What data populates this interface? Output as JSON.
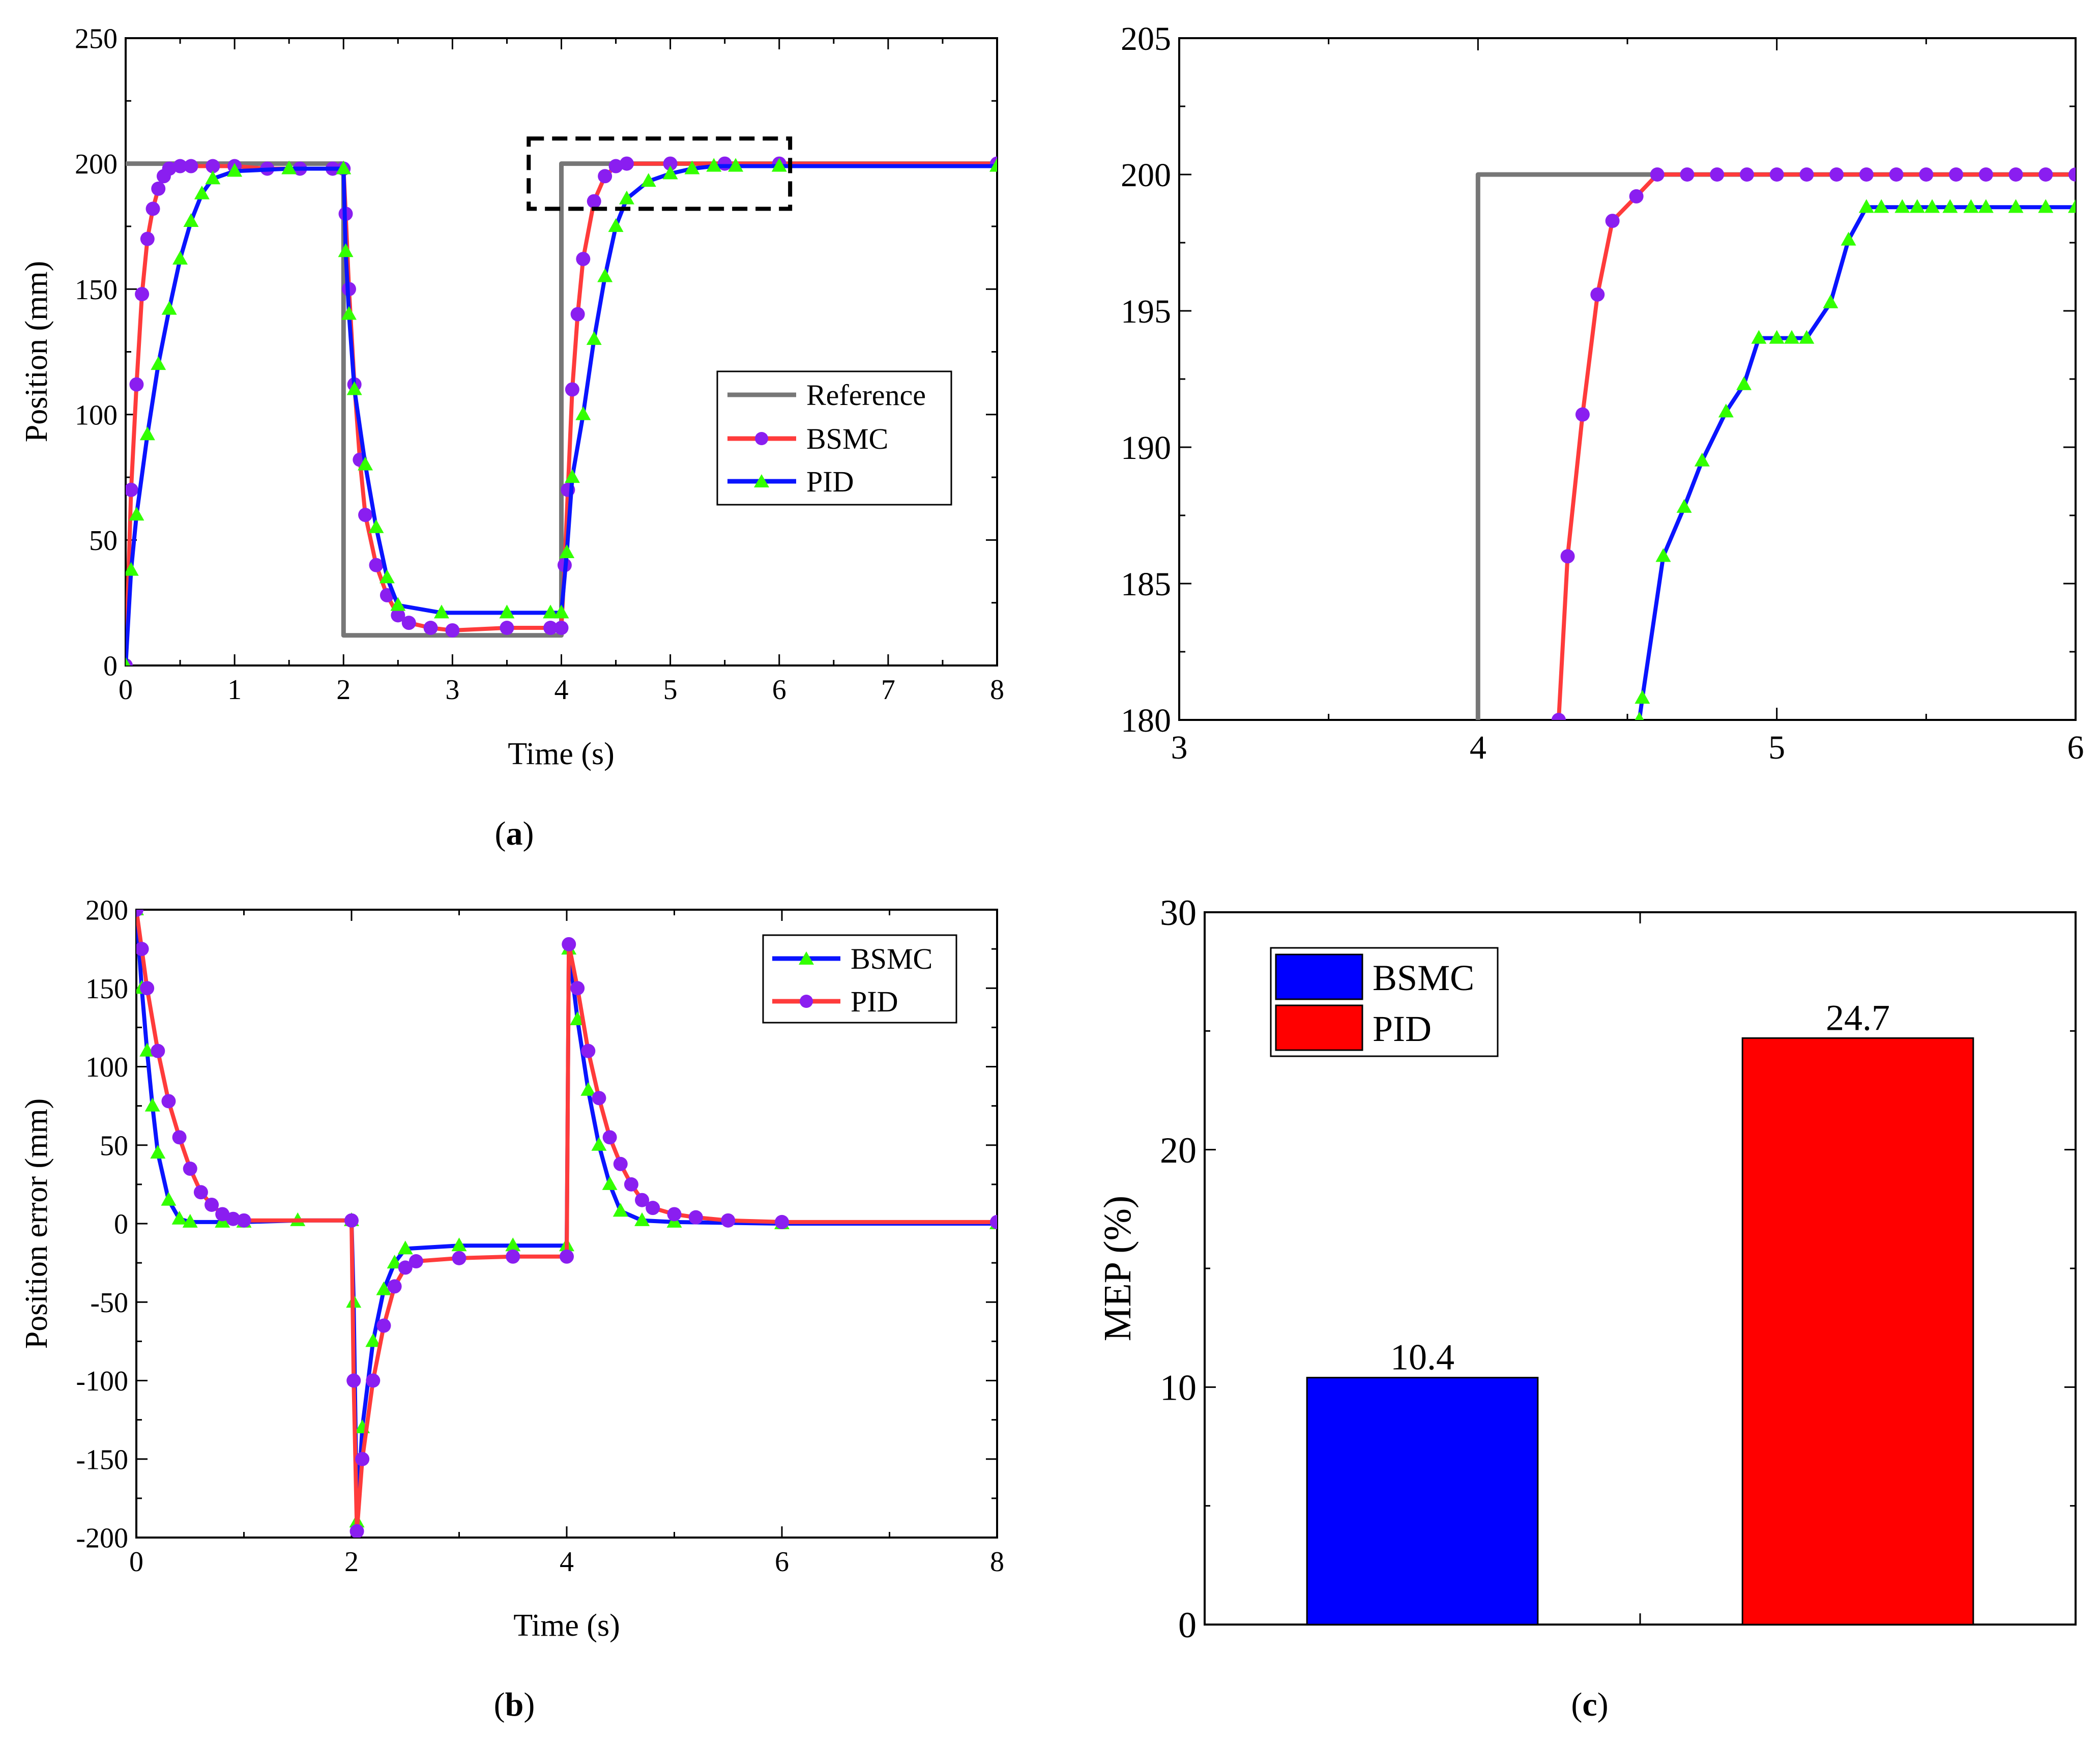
{
  "panels": {
    "a": {
      "label": "a"
    },
    "b": {
      "label": "b"
    },
    "c": {
      "label": "c"
    }
  },
  "colors": {
    "reference": "#777777",
    "bsmc_line": "#ff3b3b",
    "bsmc_marker": "#8a1ef0",
    "pid_line": "#0a14ff",
    "pid_marker": "#33ff00",
    "bar_bsmc": "#0000ff",
    "bar_pid": "#ff0000"
  },
  "chart_data": [
    {
      "id": "a",
      "type": "line",
      "title": "",
      "xlabel": "Time (s)",
      "ylabel": "Position (mm)",
      "xlim": [
        0,
        8
      ],
      "ylim": [
        0,
        250
      ],
      "xticks": [
        0,
        1,
        2,
        3,
        4,
        5,
        6,
        7,
        8
      ],
      "yticks": [
        0,
        50,
        100,
        150,
        200,
        250
      ],
      "legend_position": "center-right",
      "zoom_box": {
        "x": [
          3.7,
          6.1
        ],
        "y": [
          182,
          210
        ]
      },
      "series": [
        {
          "name": "Reference",
          "style": "reference",
          "points": [
            [
              0,
              200
            ],
            [
              2,
              200
            ],
            [
              2,
              12
            ],
            [
              4,
              12
            ],
            [
              4,
              200
            ],
            [
              8,
              200
            ]
          ]
        },
        {
          "name": "BSMC",
          "style": "bsmc",
          "marker": "circle",
          "points": [
            [
              0,
              0
            ],
            [
              0.05,
              70
            ],
            [
              0.1,
              112
            ],
            [
              0.15,
              148
            ],
            [
              0.2,
              170
            ],
            [
              0.25,
              182
            ],
            [
              0.3,
              190
            ],
            [
              0.35,
              195
            ],
            [
              0.4,
              198
            ],
            [
              0.5,
              199
            ],
            [
              0.6,
              199
            ],
            [
              0.8,
              199
            ],
            [
              1.0,
              199
            ],
            [
              1.3,
              198
            ],
            [
              1.6,
              198
            ],
            [
              1.9,
              198
            ],
            [
              2.0,
              198
            ],
            [
              2.02,
              180
            ],
            [
              2.05,
              150
            ],
            [
              2.1,
              112
            ],
            [
              2.15,
              82
            ],
            [
              2.2,
              60
            ],
            [
              2.3,
              40
            ],
            [
              2.4,
              28
            ],
            [
              2.5,
              20
            ],
            [
              2.6,
              17
            ],
            [
              2.8,
              15
            ],
            [
              3.0,
              14
            ],
            [
              3.5,
              15
            ],
            [
              3.9,
              15
            ],
            [
              4.0,
              15
            ],
            [
              4.03,
              40
            ],
            [
              4.06,
              70
            ],
            [
              4.1,
              110
            ],
            [
              4.15,
              140
            ],
            [
              4.2,
              162
            ],
            [
              4.3,
              185
            ],
            [
              4.4,
              195
            ],
            [
              4.5,
              199
            ],
            [
              4.6,
              200
            ],
            [
              5.0,
              200
            ],
            [
              5.5,
              200
            ],
            [
              6.0,
              200
            ],
            [
              8.0,
              200
            ]
          ]
        },
        {
          "name": "PID",
          "style": "pid",
          "marker": "triangle",
          "points": [
            [
              0,
              0
            ],
            [
              0.05,
              38
            ],
            [
              0.1,
              60
            ],
            [
              0.2,
              92
            ],
            [
              0.3,
              120
            ],
            [
              0.4,
              142
            ],
            [
              0.5,
              162
            ],
            [
              0.6,
              177
            ],
            [
              0.7,
              188
            ],
            [
              0.8,
              194
            ],
            [
              1.0,
              197
            ],
            [
              1.5,
              198
            ],
            [
              2.0,
              198
            ],
            [
              2.02,
              165
            ],
            [
              2.05,
              140
            ],
            [
              2.1,
              110
            ],
            [
              2.2,
              80
            ],
            [
              2.3,
              55
            ],
            [
              2.4,
              35
            ],
            [
              2.5,
              24
            ],
            [
              2.9,
              21
            ],
            [
              3.5,
              21
            ],
            [
              3.9,
              21
            ],
            [
              4.0,
              21
            ],
            [
              4.05,
              45
            ],
            [
              4.1,
              75
            ],
            [
              4.2,
              100
            ],
            [
              4.3,
              130
            ],
            [
              4.4,
              155
            ],
            [
              4.5,
              175
            ],
            [
              4.6,
              186
            ],
            [
              4.8,
              193
            ],
            [
              5.0,
              196
            ],
            [
              5.2,
              198
            ],
            [
              5.4,
              199
            ],
            [
              5.6,
              199
            ],
            [
              6.0,
              199
            ],
            [
              8.0,
              199
            ]
          ]
        }
      ]
    },
    {
      "id": "zoom",
      "type": "line",
      "title": "",
      "xlabel": "",
      "ylabel": "",
      "xlim": [
        3,
        6
      ],
      "ylim": [
        180,
        205
      ],
      "xticks": [
        3,
        4,
        5,
        6
      ],
      "yticks": [
        180,
        185,
        190,
        195,
        200,
        205
      ],
      "series": [
        {
          "name": "Reference",
          "style": "reference",
          "points": [
            [
              4,
              180
            ],
            [
              4,
              200
            ],
            [
              6,
              200
            ]
          ]
        },
        {
          "name": "BSMC",
          "style": "bsmc",
          "marker": "circle",
          "points": [
            [
              4.27,
              180
            ],
            [
              4.3,
              186
            ],
            [
              4.35,
              191.2
            ],
            [
              4.4,
              195.6
            ],
            [
              4.45,
              198.3
            ],
            [
              4.53,
              199.2
            ],
            [
              4.6,
              200
            ],
            [
              4.7,
              200
            ],
            [
              4.8,
              200
            ],
            [
              4.9,
              200
            ],
            [
              5.0,
              200
            ],
            [
              5.1,
              200
            ],
            [
              5.2,
              200
            ],
            [
              5.3,
              200
            ],
            [
              5.4,
              200
            ],
            [
              5.5,
              200
            ],
            [
              5.6,
              200
            ],
            [
              5.7,
              200
            ],
            [
              5.8,
              200
            ],
            [
              5.9,
              200
            ],
            [
              6.0,
              200
            ]
          ]
        },
        {
          "name": "PID",
          "style": "pid",
          "marker": "triangle",
          "points": [
            [
              4.54,
              180
            ],
            [
              4.55,
              180.8
            ],
            [
              4.62,
              186
            ],
            [
              4.69,
              187.8
            ],
            [
              4.75,
              189.5
            ],
            [
              4.83,
              191.3
            ],
            [
              4.89,
              192.3
            ],
            [
              4.94,
              194
            ],
            [
              5.0,
              194
            ],
            [
              5.05,
              194
            ],
            [
              5.1,
              194
            ],
            [
              5.18,
              195.3
            ],
            [
              5.24,
              197.6
            ],
            [
              5.3,
              198.8
            ],
            [
              5.35,
              198.8
            ],
            [
              5.42,
              198.8
            ],
            [
              5.47,
              198.8
            ],
            [
              5.52,
              198.8
            ],
            [
              5.58,
              198.8
            ],
            [
              5.65,
              198.8
            ],
            [
              5.7,
              198.8
            ],
            [
              5.8,
              198.8
            ],
            [
              5.9,
              198.8
            ],
            [
              6.0,
              198.8
            ]
          ]
        }
      ]
    },
    {
      "id": "b",
      "type": "line",
      "title": "",
      "xlabel": "Time (s)",
      "ylabel": "Position error (mm)",
      "xlim": [
        0,
        8
      ],
      "ylim": [
        -200,
        200
      ],
      "xticks": [
        0,
        2,
        4,
        6,
        8
      ],
      "yticks": [
        -200,
        -150,
        -100,
        -50,
        0,
        50,
        100,
        150,
        200
      ],
      "legend_position": "top-right",
      "series": [
        {
          "name": "BSMC",
          "style": "pid",
          "marker": "triangle",
          "points": [
            [
              0,
              200
            ],
            [
              0.05,
              150
            ],
            [
              0.1,
              110
            ],
            [
              0.15,
              75
            ],
            [
              0.2,
              45
            ],
            [
              0.3,
              15
            ],
            [
              0.4,
              3
            ],
            [
              0.5,
              1
            ],
            [
              0.8,
              1
            ],
            [
              1.0,
              1
            ],
            [
              1.5,
              2
            ],
            [
              2.0,
              2
            ],
            [
              2.02,
              -50
            ],
            [
              2.05,
              -190
            ],
            [
              2.1,
              -130
            ],
            [
              2.2,
              -75
            ],
            [
              2.3,
              -42
            ],
            [
              2.4,
              -25
            ],
            [
              2.5,
              -16
            ],
            [
              3.0,
              -14
            ],
            [
              3.5,
              -14
            ],
            [
              4.0,
              -14
            ],
            [
              4.02,
              175
            ],
            [
              4.1,
              130
            ],
            [
              4.2,
              85
            ],
            [
              4.3,
              50
            ],
            [
              4.4,
              25
            ],
            [
              4.5,
              8
            ],
            [
              4.7,
              2
            ],
            [
              5.0,
              1
            ],
            [
              6.0,
              0
            ],
            [
              8.0,
              0
            ]
          ]
        },
        {
          "name": "PID",
          "style": "bsmc",
          "marker": "circle",
          "points": [
            [
              0,
              200
            ],
            [
              0.05,
              175
            ],
            [
              0.1,
              150
            ],
            [
              0.2,
              110
            ],
            [
              0.3,
              78
            ],
            [
              0.4,
              55
            ],
            [
              0.5,
              35
            ],
            [
              0.6,
              20
            ],
            [
              0.7,
              12
            ],
            [
              0.8,
              6
            ],
            [
              0.9,
              3
            ],
            [
              1.0,
              2
            ],
            [
              2.0,
              2
            ],
            [
              2.02,
              -100
            ],
            [
              2.05,
              -196
            ],
            [
              2.1,
              -150
            ],
            [
              2.2,
              -100
            ],
            [
              2.3,
              -65
            ],
            [
              2.4,
              -40
            ],
            [
              2.5,
              -28
            ],
            [
              2.6,
              -24
            ],
            [
              3.0,
              -22
            ],
            [
              3.5,
              -21
            ],
            [
              4.0,
              -21
            ],
            [
              4.02,
              178
            ],
            [
              4.1,
              150
            ],
            [
              4.2,
              110
            ],
            [
              4.3,
              80
            ],
            [
              4.4,
              55
            ],
            [
              4.5,
              38
            ],
            [
              4.6,
              25
            ],
            [
              4.7,
              15
            ],
            [
              4.8,
              10
            ],
            [
              5.0,
              6
            ],
            [
              5.2,
              4
            ],
            [
              5.5,
              2
            ],
            [
              6.0,
              1
            ],
            [
              8.0,
              1
            ]
          ]
        }
      ]
    },
    {
      "id": "c",
      "type": "bar",
      "title": "",
      "xlabel": "",
      "ylabel": "MEP (%)",
      "ylim": [
        0,
        30
      ],
      "yticks": [
        0,
        10,
        20,
        30
      ],
      "legend_position": "top-left",
      "categories": [
        "BSMC",
        "PID"
      ],
      "values": [
        10.4,
        24.7
      ],
      "data_labels": [
        "10.4",
        "24.7"
      ]
    }
  ]
}
